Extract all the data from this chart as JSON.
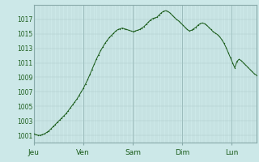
{
  "background_color": "#cce8e8",
  "plot_bg_color": "#cce8e8",
  "line_color": "#1a5c1a",
  "dot_color": "#1a5c1a",
  "grid_color": "#aac8c8",
  "major_grid_color": "#88aaaa",
  "ylim": [
    1000,
    1019
  ],
  "yticks": [
    1001,
    1003,
    1005,
    1007,
    1009,
    1011,
    1013,
    1015,
    1017
  ],
  "day_labels": [
    "Jeu",
    "Ven",
    "Sam",
    "Dim",
    "Lun"
  ],
  "day_positions": [
    0,
    24,
    48,
    72,
    96
  ],
  "total_hours": 108,
  "pressure_data": [
    1001.2,
    1001.1,
    1001.0,
    1001.0,
    1001.1,
    1001.2,
    1001.4,
    1001.6,
    1001.9,
    1002.2,
    1002.5,
    1002.8,
    1003.1,
    1003.4,
    1003.7,
    1004.0,
    1004.4,
    1004.8,
    1005.2,
    1005.6,
    1006.0,
    1006.5,
    1007.0,
    1007.5,
    1008.1,
    1008.7,
    1009.4,
    1010.1,
    1010.8,
    1011.5,
    1012.1,
    1012.7,
    1013.2,
    1013.7,
    1014.1,
    1014.5,
    1014.8,
    1015.1,
    1015.4,
    1015.6,
    1015.7,
    1015.8,
    1015.7,
    1015.6,
    1015.5,
    1015.4,
    1015.3,
    1015.4,
    1015.5,
    1015.6,
    1015.8,
    1016.0,
    1016.3,
    1016.6,
    1016.9,
    1017.1,
    1017.2,
    1017.3,
    1017.6,
    1017.9,
    1018.1,
    1018.2,
    1018.1,
    1017.9,
    1017.6,
    1017.3,
    1017.0,
    1016.8,
    1016.5,
    1016.2,
    1015.9,
    1015.6,
    1015.4,
    1015.5,
    1015.7,
    1015.9,
    1016.2,
    1016.4,
    1016.5,
    1016.4,
    1016.2,
    1015.9,
    1015.6,
    1015.3,
    1015.1,
    1014.9,
    1014.6,
    1014.2,
    1013.7,
    1013.1,
    1012.4,
    1011.7,
    1011.0,
    1010.3,
    1011.2,
    1011.5,
    1011.3,
    1011.0,
    1010.7,
    1010.4,
    1010.1,
    1009.8,
    1009.5,
    1009.3
  ]
}
